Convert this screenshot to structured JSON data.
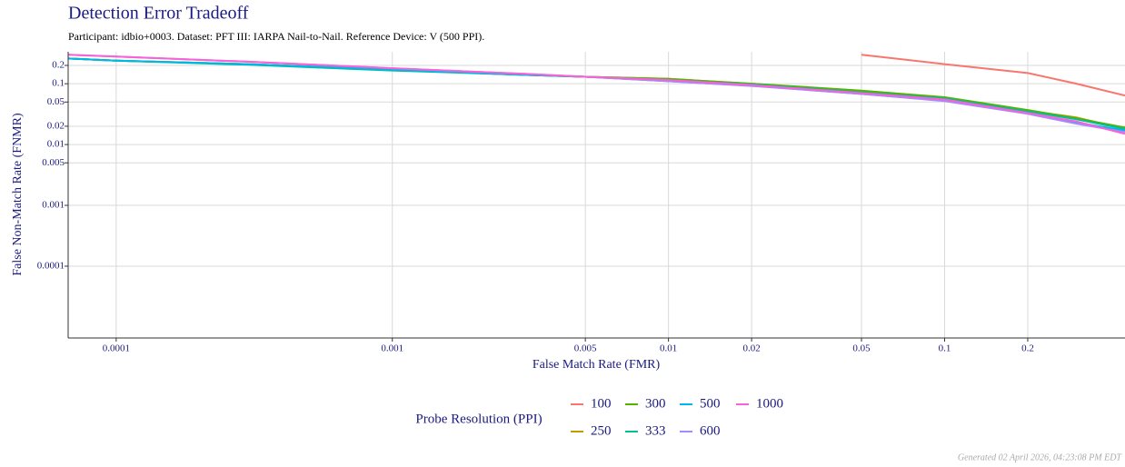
{
  "chart_data": {
    "type": "line",
    "title": "Detection Error Tradeoff",
    "subtitle": "Participant: idbio+0003. Dataset: PFT III: IARPA Nail-to-Nail. Reference Device: V (500 PPI).",
    "x_label": "False Match Rate (FMR)",
    "y_label": "False Non-Match Rate (FNMR)",
    "legend_title": "Probe Resolution (PPI)",
    "footer": "Generated 02 April 2026, 04:23:08 PM EDT",
    "x_log": true,
    "y_log": true,
    "grid": true,
    "legend_position": "bottom",
    "xlim": [
      6.7e-05,
      0.45
    ],
    "ylim": [
      6.6e-06,
      0.335
    ],
    "xticks": [
      0.0001,
      0.001,
      0.005,
      0.01,
      0.02,
      0.05,
      0.1,
      0.2
    ],
    "yticks": [
      0.2,
      0.1,
      0.05,
      0.02,
      0.01,
      0.005,
      0.001,
      0.0001
    ],
    "x": [
      6.7e-05,
      0.0001,
      0.0003,
      0.001,
      0.003,
      0.005,
      0.01,
      0.02,
      0.05,
      0.1,
      0.2,
      0.3,
      0.45
    ],
    "series": [
      {
        "name": "100",
        "color": "#F8766D",
        "values": [
          null,
          null,
          null,
          null,
          null,
          null,
          null,
          null,
          0.3,
          0.21,
          0.15,
          0.1,
          0.064
        ]
      },
      {
        "name": "250",
        "color": "#C49A00",
        "values": [
          0.26,
          0.24,
          0.21,
          0.17,
          0.14,
          0.13,
          0.12,
          0.1,
          0.075,
          0.058,
          0.036,
          0.028,
          0.018
        ]
      },
      {
        "name": "300",
        "color": "#53B400",
        "values": [
          0.26,
          0.24,
          0.21,
          0.17,
          0.14,
          0.13,
          0.12,
          0.1,
          0.077,
          0.06,
          0.037,
          0.027,
          0.019
        ]
      },
      {
        "name": "333",
        "color": "#00C094",
        "values": [
          0.26,
          0.24,
          0.205,
          0.165,
          0.14,
          0.13,
          0.115,
          0.097,
          0.072,
          0.057,
          0.035,
          0.026,
          0.018
        ]
      },
      {
        "name": "500",
        "color": "#00B6EB",
        "values": [
          0.26,
          0.24,
          0.21,
          0.17,
          0.14,
          0.13,
          0.11,
          0.093,
          0.068,
          0.053,
          0.033,
          0.023,
          0.017
        ]
      },
      {
        "name": "600",
        "color": "#A58AFF",
        "values": [
          0.3,
          0.28,
          0.23,
          0.18,
          0.145,
          0.13,
          0.11,
          0.092,
          0.068,
          0.052,
          0.032,
          0.022,
          0.016
        ]
      },
      {
        "name": "1000",
        "color": "#FB61D7",
        "values": [
          0.3,
          0.28,
          0.23,
          0.18,
          0.145,
          0.13,
          0.115,
          0.095,
          0.07,
          0.055,
          0.033,
          0.024,
          0.015
        ]
      }
    ]
  }
}
